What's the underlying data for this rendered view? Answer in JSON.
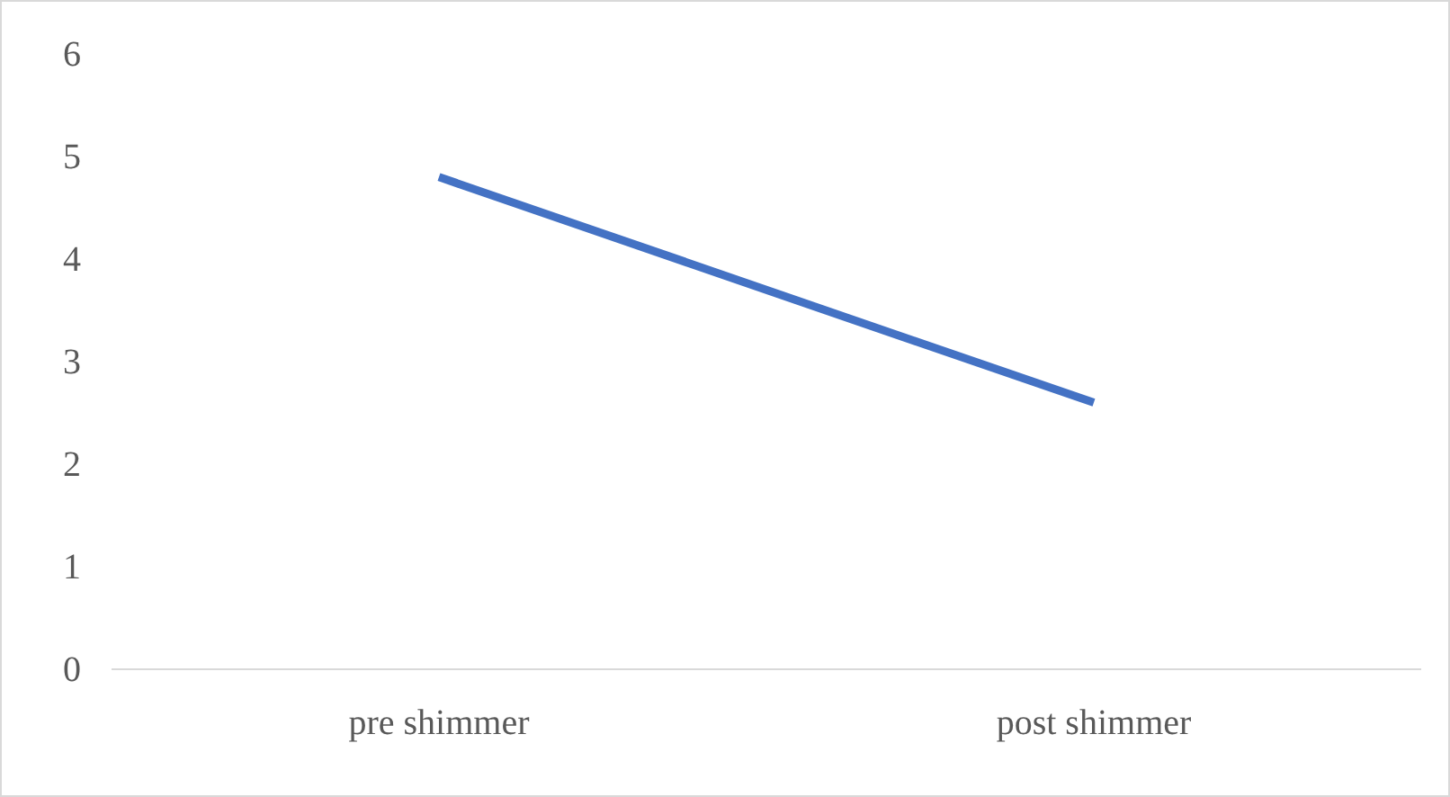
{
  "chart_data": {
    "type": "line",
    "categories": [
      "pre shimmer",
      "post shimmer"
    ],
    "series": [
      {
        "color": "#4472c4",
        "values": [
          4.8,
          2.6
        ]
      }
    ],
    "ylim": [
      0,
      6
    ],
    "yticks": [
      0,
      1,
      2,
      3,
      4,
      5,
      6
    ],
    "grid": false,
    "marker": "none",
    "line_style": "solid"
  }
}
